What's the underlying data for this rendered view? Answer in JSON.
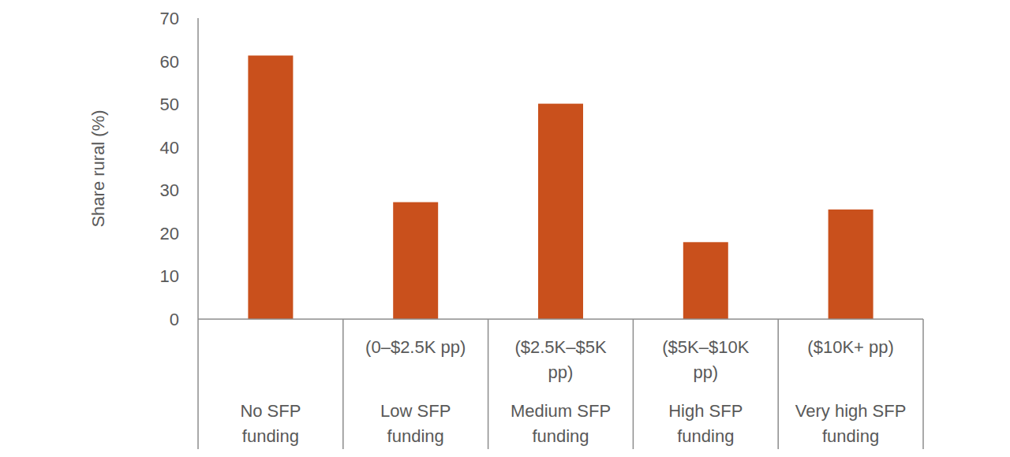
{
  "chart_data": {
    "type": "bar",
    "y_label": "Share rural (%)",
    "categories": [
      "No SFP funding",
      "Low SFP funding",
      "Medium SFP funding",
      "High SFP funding",
      "Very high SFP funding"
    ],
    "category_ranges": [
      null,
      "(0–$2.5K pp)",
      "($2.5K–$5K pp)",
      "($5K–$10K pp)",
      "($10K+ pp)"
    ],
    "values": [
      61.3,
      27.2,
      50.1,
      17.9,
      25.5
    ],
    "color": "#c9501c",
    "ylim": [
      0,
      70
    ],
    "yticks": [
      0,
      10,
      20,
      30,
      40,
      50,
      60,
      70
    ],
    "grid": false
  }
}
